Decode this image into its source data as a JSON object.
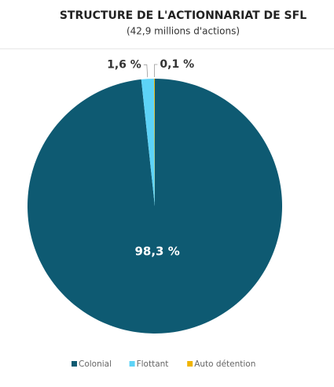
{
  "chart_data": {
    "type": "pie",
    "title": "STRUCTURE DE L'ACTIONNARIAT DE SFL",
    "subtitle": "(42,9 millions d'actions)",
    "categories": [
      "Colonial",
      "Flottant",
      "Auto détention"
    ],
    "values": [
      98.3,
      1.6,
      0.1
    ],
    "value_labels": [
      "98,3 %",
      "1,6 %",
      "0,1 %"
    ],
    "colors": [
      "#0e5a72",
      "#5dd3f7",
      "#f0b400"
    ]
  }
}
